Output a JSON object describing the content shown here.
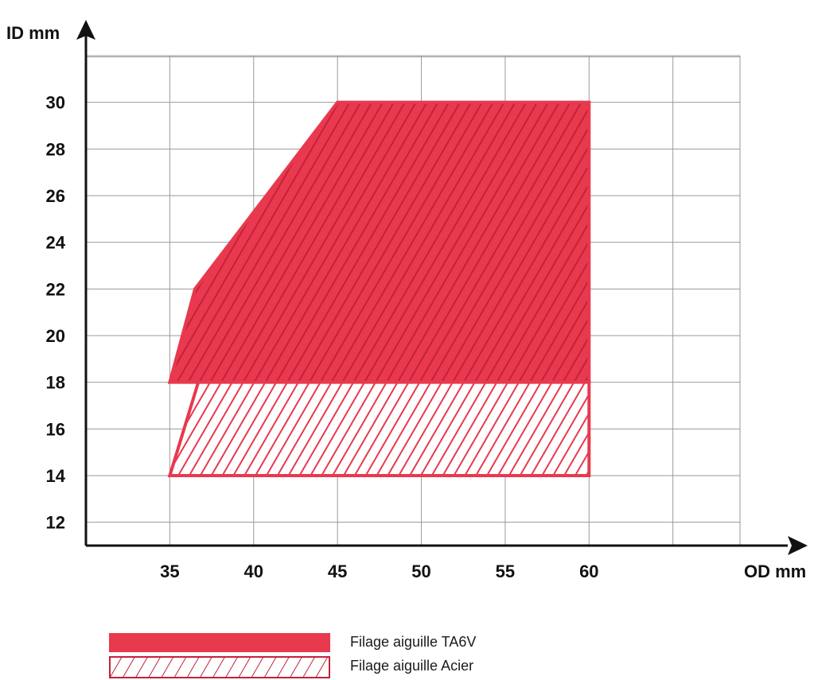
{
  "chart_data": {
    "type": "area",
    "xlabel": "OD mm",
    "ylabel": "ID mm",
    "xlim": [
      30,
      69
    ],
    "ylim": [
      11,
      32
    ],
    "x_ticks": [
      "35",
      "40",
      "45",
      "50",
      "55",
      "60"
    ],
    "x_tick_values": [
      35,
      40,
      45,
      50,
      55,
      60
    ],
    "y_ticks": [
      "12",
      "14",
      "16",
      "18",
      "20",
      "22",
      "24",
      "26",
      "28",
      "30"
    ],
    "y_tick_values": [
      12,
      14,
      16,
      18,
      20,
      22,
      24,
      26,
      28,
      30
    ],
    "grid": true,
    "legend_position": "bottom",
    "series": [
      {
        "name": "Filage aiguille TA6V",
        "style": "solid-fill",
        "polygon": [
          [
            35,
            18
          ],
          [
            36.5,
            22
          ],
          [
            45,
            30
          ],
          [
            60,
            30
          ],
          [
            60,
            18
          ]
        ]
      },
      {
        "name": "Filage aiguille Acier",
        "style": "hatched",
        "polygon": [
          [
            35,
            14
          ],
          [
            36.7,
            18
          ],
          [
            60,
            18
          ],
          [
            60,
            14
          ]
        ]
      }
    ]
  },
  "colors": {
    "accent": "#e8394f",
    "hatch_dark": "#c4213a",
    "grid": "#9a9a9a",
    "axis": "#111111"
  }
}
